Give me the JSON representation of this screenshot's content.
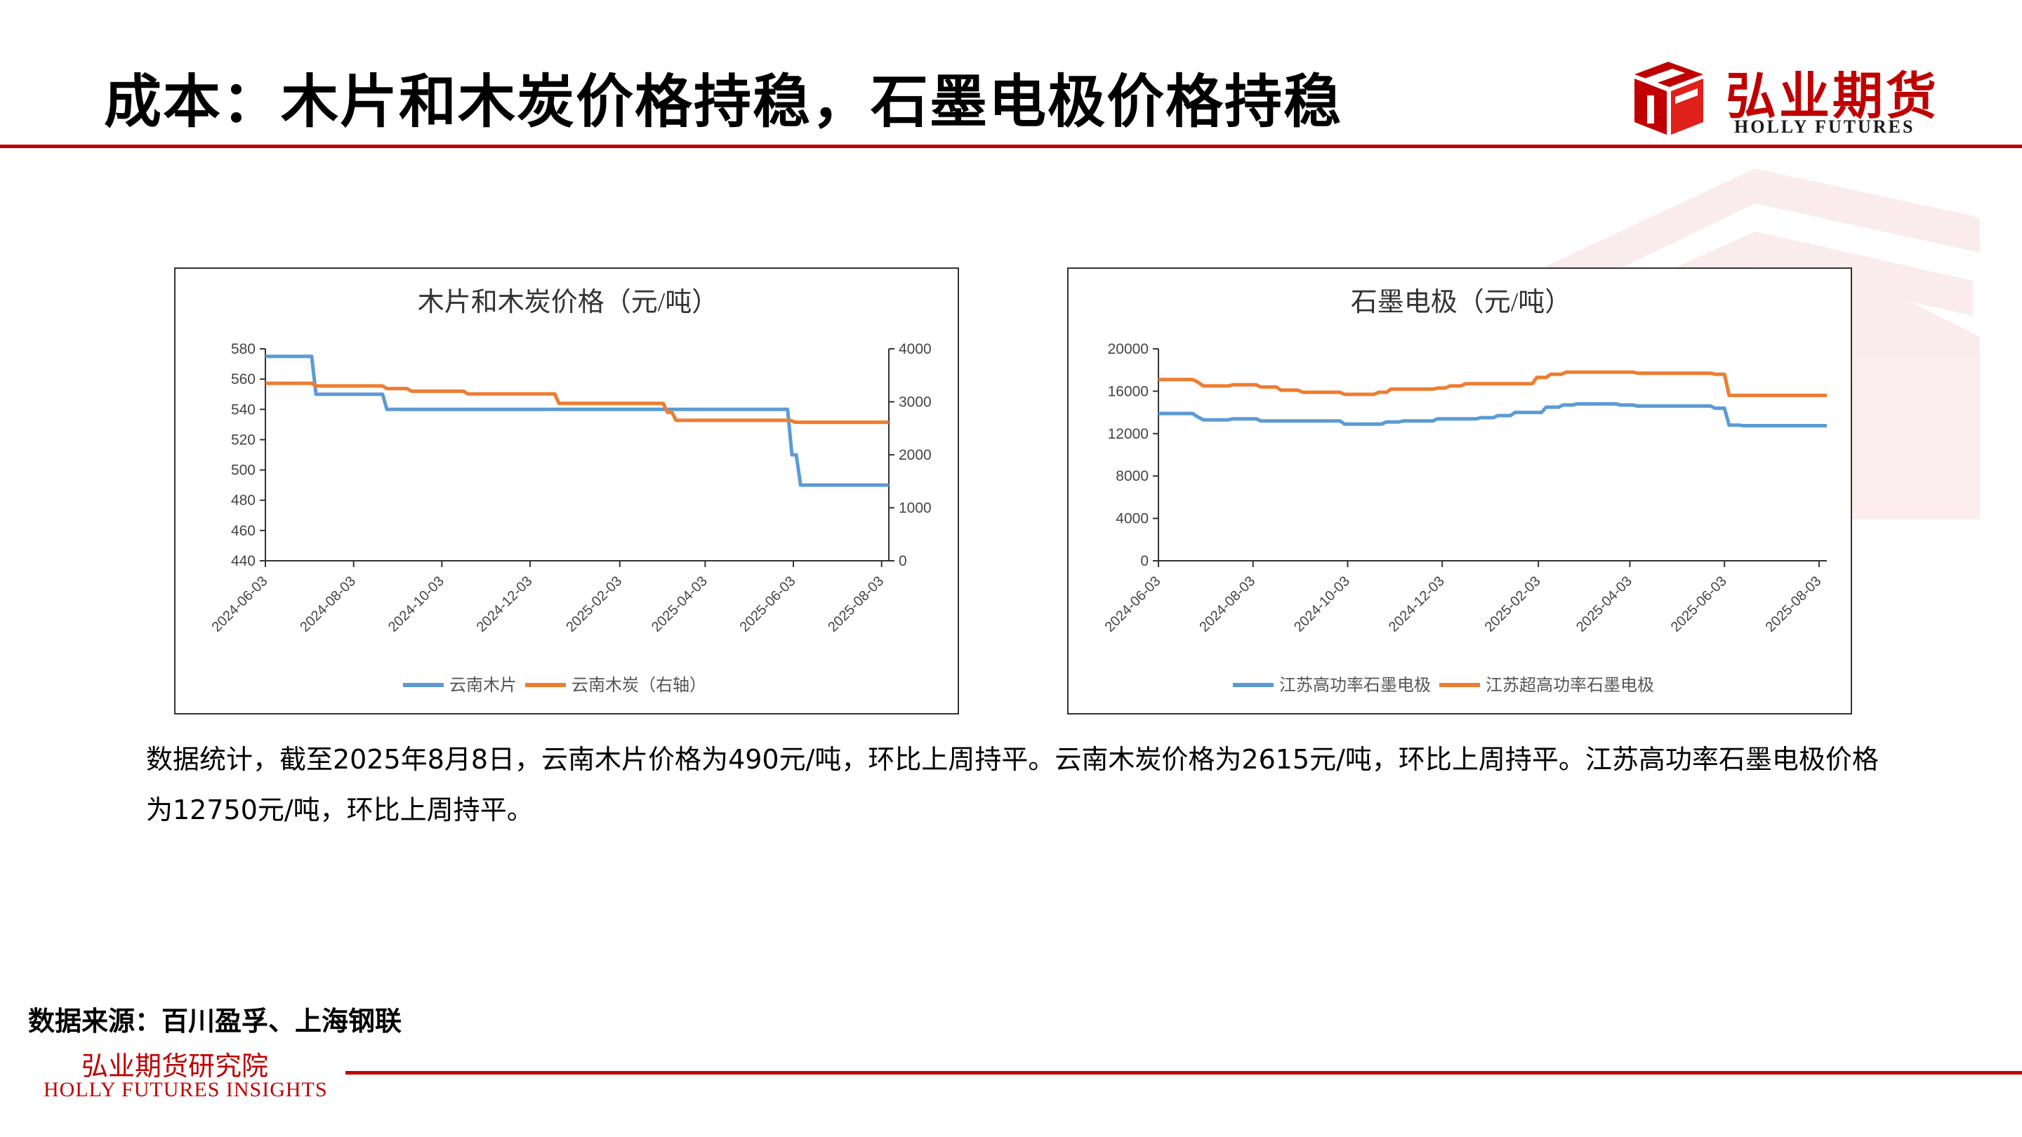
{
  "header": {
    "title": "成本：木片和木炭价格持稳，石墨电极价格持稳",
    "logo_cn": "弘业期货",
    "logo_en": "HOLLY FUTURES"
  },
  "colors": {
    "accent": "#c00000",
    "blue": "#5b9bd5",
    "orange": "#ed7d31"
  },
  "description": "数据统计，截至2025年8月8日，云南木片价格为490元/吨，环比上周持平。云南木炭价格为2615元/吨，环比上周持平。江苏高功率石墨电极价格为12750元/吨，环比上周持平。",
  "source": "数据来源：百川盈孚、上海钢联",
  "footer": {
    "cn": "弘业期货研究院",
    "en": "HOLLY FUTURES INSIGHTS"
  },
  "chart_data": [
    {
      "type": "line",
      "title": "木片和木炭价格（元/吨）",
      "x_ticks": [
        "2024-06-03",
        "2024-08-03",
        "2024-10-03",
        "2024-12-03",
        "2025-02-03",
        "2025-04-03",
        "2025-06-03",
        "2025-08-03"
      ],
      "x_range": [
        "2024-06-03",
        "2025-08-08"
      ],
      "left_axis": {
        "ylim": [
          440,
          580
        ],
        "ticks": [
          440,
          460,
          480,
          500,
          520,
          540,
          560,
          580
        ]
      },
      "right_axis": {
        "ylim": [
          0,
          4000
        ],
        "ticks": [
          0,
          1000,
          2000,
          3000,
          4000
        ]
      },
      "series": [
        {
          "name": "云南木片",
          "axis": "left",
          "color": "#5b9bd5",
          "points": [
            [
              "2024-06-03",
              575
            ],
            [
              "2024-07-05",
              575
            ],
            [
              "2024-07-08",
              550
            ],
            [
              "2024-08-23",
              550
            ],
            [
              "2024-08-26",
              540
            ],
            [
              "2025-05-30",
              540
            ],
            [
              "2025-06-02",
              510
            ],
            [
              "2025-06-05",
              510
            ],
            [
              "2025-06-08",
              490
            ],
            [
              "2025-08-08",
              490
            ]
          ]
        },
        {
          "name": "云南木炭（右轴）",
          "axis": "right",
          "color": "#ed7d31",
          "points": [
            [
              "2024-06-03",
              3350
            ],
            [
              "2024-07-05",
              3350
            ],
            [
              "2024-07-08",
              3300
            ],
            [
              "2024-08-23",
              3300
            ],
            [
              "2024-08-26",
              3250
            ],
            [
              "2024-09-09",
              3250
            ],
            [
              "2024-09-12",
              3200
            ],
            [
              "2024-10-18",
              3200
            ],
            [
              "2024-10-21",
              3150
            ],
            [
              "2024-12-20",
              3150
            ],
            [
              "2024-12-23",
              2970
            ],
            [
              "2025-03-05",
              2970
            ],
            [
              "2025-03-08",
              2800
            ],
            [
              "2025-03-11",
              2800
            ],
            [
              "2025-03-14",
              2650
            ],
            [
              "2025-06-01",
              2650
            ],
            [
              "2025-06-04",
              2615
            ],
            [
              "2025-08-08",
              2615
            ]
          ]
        }
      ]
    },
    {
      "type": "line",
      "title": "石墨电极（元/吨）",
      "x_ticks": [
        "2024-06-03",
        "2024-08-03",
        "2024-10-03",
        "2024-12-03",
        "2025-02-03",
        "2025-04-03",
        "2025-06-03",
        "2025-08-03"
      ],
      "x_range": [
        "2024-06-03",
        "2025-08-08"
      ],
      "left_axis": {
        "ylim": [
          0,
          20000
        ],
        "ticks": [
          0,
          4000,
          8000,
          12000,
          16000,
          20000
        ]
      },
      "series": [
        {
          "name": "江苏高功率石墨电极",
          "axis": "left",
          "color": "#5b9bd5",
          "points": [
            [
              "2024-06-03",
              13900
            ],
            [
              "2024-06-25",
              13900
            ],
            [
              "2024-06-28",
              13600
            ],
            [
              "2024-07-02",
              13300
            ],
            [
              "2024-07-18",
              13300
            ],
            [
              "2024-07-21",
              13400
            ],
            [
              "2024-08-05",
              13400
            ],
            [
              "2024-08-08",
              13200
            ],
            [
              "2024-09-28",
              13200
            ],
            [
              "2024-10-01",
              12900
            ],
            [
              "2024-10-25",
              12900
            ],
            [
              "2024-10-28",
              13100
            ],
            [
              "2024-11-05",
              13100
            ],
            [
              "2024-11-08",
              13200
            ],
            [
              "2024-11-27",
              13200
            ],
            [
              "2024-11-30",
              13400
            ],
            [
              "2024-12-25",
              13400
            ],
            [
              "2024-12-28",
              13500
            ],
            [
              "2025-01-05",
              13500
            ],
            [
              "2025-01-08",
              13700
            ],
            [
              "2025-01-16",
              13700
            ],
            [
              "2025-01-19",
              14000
            ],
            [
              "2025-02-05",
              14000
            ],
            [
              "2025-02-08",
              14500
            ],
            [
              "2025-02-16",
              14500
            ],
            [
              "2025-02-19",
              14700
            ],
            [
              "2025-02-25",
              14700
            ],
            [
              "2025-02-28",
              14800
            ],
            [
              "2025-03-25",
              14800
            ],
            [
              "2025-03-28",
              14700
            ],
            [
              "2025-04-05",
              14700
            ],
            [
              "2025-04-08",
              14600
            ],
            [
              "2025-05-25",
              14600
            ],
            [
              "2025-05-28",
              14400
            ],
            [
              "2025-06-03",
              14400
            ],
            [
              "2025-06-06",
              12800
            ],
            [
              "2025-06-12",
              12800
            ],
            [
              "2025-06-15",
              12750
            ],
            [
              "2025-08-08",
              12750
            ]
          ]
        },
        {
          "name": "江苏超高功率石墨电极",
          "axis": "left",
          "color": "#ed7d31",
          "points": [
            [
              "2024-06-03",
              17100
            ],
            [
              "2024-06-25",
              17100
            ],
            [
              "2024-06-28",
              16900
            ],
            [
              "2024-07-02",
              16500
            ],
            [
              "2024-07-18",
              16500
            ],
            [
              "2024-07-21",
              16600
            ],
            [
              "2024-08-05",
              16600
            ],
            [
              "2024-08-08",
              16400
            ],
            [
              "2024-08-18",
              16400
            ],
            [
              "2024-08-21",
              16100
            ],
            [
              "2024-09-01",
              16100
            ],
            [
              "2024-09-04",
              15900
            ],
            [
              "2024-09-28",
              15900
            ],
            [
              "2024-10-01",
              15700
            ],
            [
              "2024-10-20",
              15700
            ],
            [
              "2024-10-23",
              15900
            ],
            [
              "2024-10-28",
              15900
            ],
            [
              "2024-10-31",
              16200
            ],
            [
              "2024-11-27",
              16200
            ],
            [
              "2024-11-30",
              16300
            ],
            [
              "2024-12-05",
              16300
            ],
            [
              "2024-12-08",
              16500
            ],
            [
              "2024-12-15",
              16500
            ],
            [
              "2024-12-18",
              16700
            ],
            [
              "2025-01-30",
              16700
            ],
            [
              "2025-02-02",
              17300
            ],
            [
              "2025-02-08",
              17300
            ],
            [
              "2025-02-11",
              17600
            ],
            [
              "2025-02-18",
              17600
            ],
            [
              "2025-02-21",
              17800
            ],
            [
              "2025-04-05",
              17800
            ],
            [
              "2025-04-08",
              17700
            ],
            [
              "2025-05-25",
              17700
            ],
            [
              "2025-05-28",
              17600
            ],
            [
              "2025-06-03",
              17600
            ],
            [
              "2025-06-06",
              15600
            ],
            [
              "2025-08-08",
              15600
            ]
          ]
        }
      ]
    }
  ]
}
